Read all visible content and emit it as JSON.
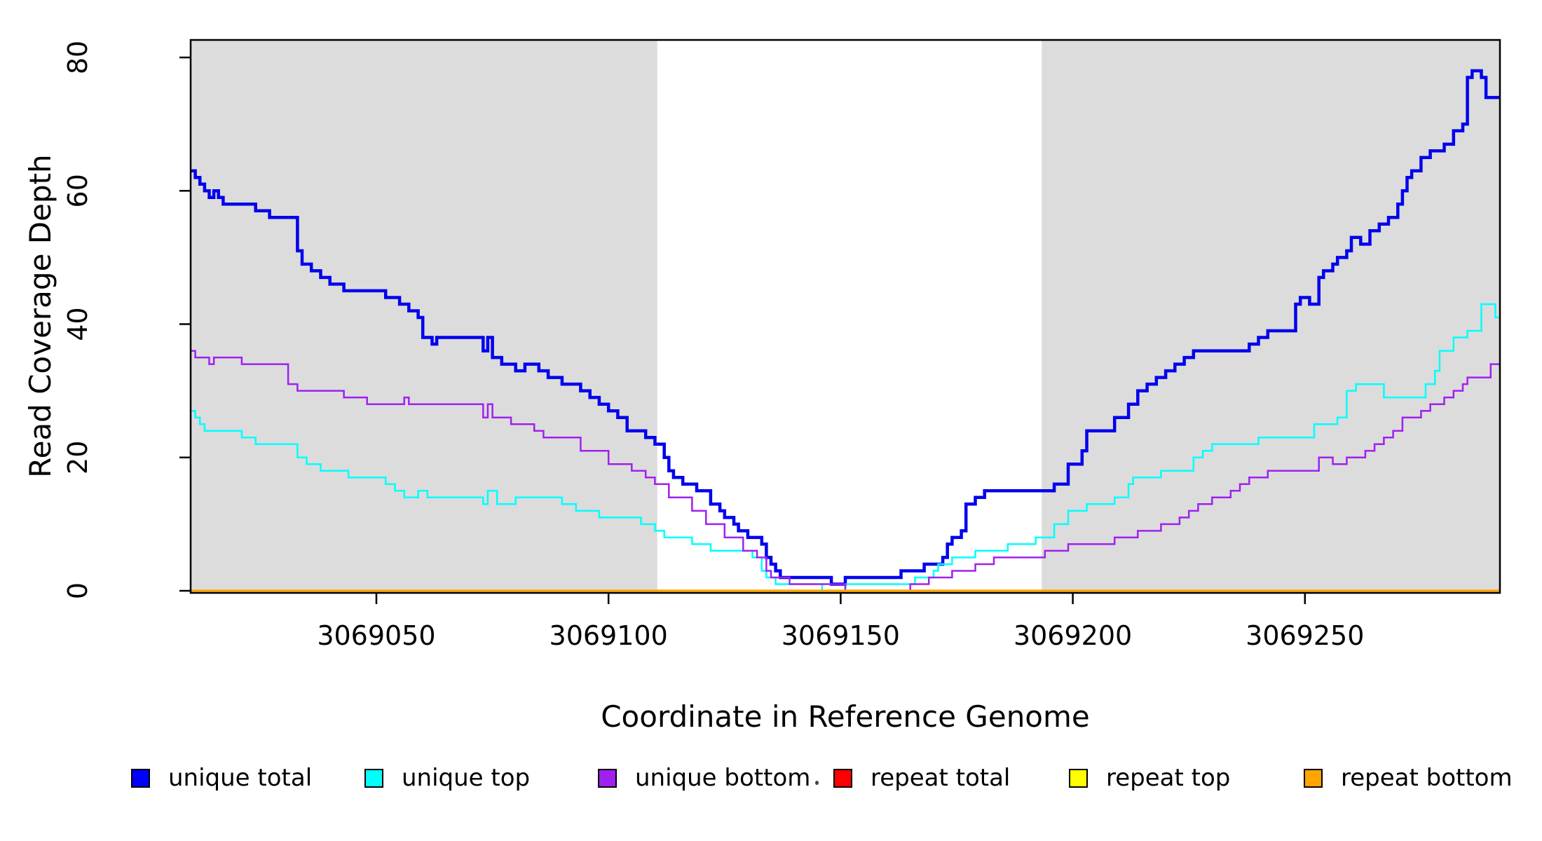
{
  "figure": {
    "kind": "R step coverage plot",
    "background": "#ffffff",
    "plot_background": "#ffffff",
    "box_color": "#000000"
  },
  "chart_data": {
    "type": "line",
    "subtype": "step",
    "title": "",
    "xlabel": "Coordinate in Reference Genome",
    "ylabel": "Read Coverage Depth",
    "xlim": [
      3069010,
      3069292
    ],
    "ylim": [
      0,
      80
    ],
    "x_ticks": [
      3069050,
      3069100,
      3069150,
      3069200,
      3069250
    ],
    "x_tick_labels": [
      "3069050",
      "3069100",
      "3069150",
      "3069200",
      "3069250"
    ],
    "y_ticks": [
      0,
      20,
      40,
      60,
      80
    ],
    "y_tick_labels": [
      "0",
      "20",
      "40",
      "60",
      "80"
    ],
    "y_tick_label_rotation": -90,
    "grid": false,
    "legend_position": "bottom",
    "shaded_regions": [
      {
        "x0": 3069010,
        "x1": 3069110.5,
        "color": "#DCDCDC",
        "name": "left-unique-shade"
      },
      {
        "x0": 3069193.3,
        "x1": 3069292,
        "color": "#DCDCDC",
        "name": "right-unique-shade"
      }
    ],
    "series": [
      {
        "name": "unique total",
        "color": "#0000EE",
        "width": 4.5,
        "steps": [
          [
            3069010,
            63
          ],
          [
            3069011,
            62
          ],
          [
            3069012,
            61
          ],
          [
            3069013,
            60
          ],
          [
            3069014,
            59
          ],
          [
            3069015,
            60
          ],
          [
            3069016,
            59
          ],
          [
            3069017,
            58
          ],
          [
            3069024,
            57
          ],
          [
            3069027,
            56
          ],
          [
            3069033,
            51
          ],
          [
            3069034,
            49
          ],
          [
            3069036,
            48
          ],
          [
            3069038,
            47
          ],
          [
            3069040,
            46
          ],
          [
            3069043,
            45
          ],
          [
            3069052,
            44
          ],
          [
            3069055,
            43
          ],
          [
            3069057,
            42
          ],
          [
            3069059,
            41
          ],
          [
            3069060,
            38
          ],
          [
            3069062,
            37
          ],
          [
            3069063,
            38
          ],
          [
            3069073,
            36
          ],
          [
            3069074,
            38
          ],
          [
            3069075,
            35
          ],
          [
            3069077,
            34
          ],
          [
            3069080,
            33
          ],
          [
            3069082,
            34
          ],
          [
            3069085,
            33
          ],
          [
            3069087,
            32
          ],
          [
            3069090,
            31
          ],
          [
            3069094,
            30
          ],
          [
            3069096,
            29
          ],
          [
            3069098,
            28
          ],
          [
            3069100,
            27
          ],
          [
            3069102,
            26
          ],
          [
            3069104,
            24
          ],
          [
            3069108,
            23
          ],
          [
            3069110,
            22
          ],
          [
            3069112,
            20
          ],
          [
            3069113,
            18
          ],
          [
            3069114,
            17
          ],
          [
            3069116,
            16
          ],
          [
            3069119,
            15
          ],
          [
            3069122,
            13
          ],
          [
            3069124,
            12
          ],
          [
            3069125,
            11
          ],
          [
            3069127,
            10
          ],
          [
            3069128,
            9
          ],
          [
            3069130,
            8
          ],
          [
            3069133,
            7
          ],
          [
            3069134,
            5
          ],
          [
            3069135,
            4
          ],
          [
            3069136,
            3
          ],
          [
            3069137,
            2
          ],
          [
            3069148,
            1
          ],
          [
            3069151,
            2
          ],
          [
            3069163,
            3
          ],
          [
            3069168,
            4
          ],
          [
            3069172,
            5
          ],
          [
            3069173,
            7
          ],
          [
            3069174,
            8
          ],
          [
            3069176,
            9
          ],
          [
            3069177,
            13
          ],
          [
            3069179,
            14
          ],
          [
            3069181,
            15
          ],
          [
            3069196,
            16
          ],
          [
            3069199,
            19
          ],
          [
            3069202,
            21
          ],
          [
            3069203,
            24
          ],
          [
            3069209,
            26
          ],
          [
            3069212,
            28
          ],
          [
            3069214,
            30
          ],
          [
            3069216,
            31
          ],
          [
            3069218,
            32
          ],
          [
            3069220,
            33
          ],
          [
            3069222,
            34
          ],
          [
            3069224,
            35
          ],
          [
            3069226,
            36
          ],
          [
            3069238,
            37
          ],
          [
            3069240,
            38
          ],
          [
            3069242,
            39
          ],
          [
            3069248,
            43
          ],
          [
            3069249,
            44
          ],
          [
            3069251,
            43
          ],
          [
            3069253,
            47
          ],
          [
            3069254,
            48
          ],
          [
            3069256,
            49
          ],
          [
            3069257,
            50
          ],
          [
            3069259,
            51
          ],
          [
            3069260,
            53
          ],
          [
            3069262,
            52
          ],
          [
            3069264,
            54
          ],
          [
            3069266,
            55
          ],
          [
            3069268,
            56
          ],
          [
            3069270,
            58
          ],
          [
            3069271,
            60
          ],
          [
            3069272,
            62
          ],
          [
            3069273,
            63
          ],
          [
            3069275,
            65
          ],
          [
            3069277,
            66
          ],
          [
            3069280,
            67
          ],
          [
            3069282,
            69
          ],
          [
            3069284,
            70
          ],
          [
            3069285,
            77
          ],
          [
            3069286,
            78
          ],
          [
            3069288,
            77
          ],
          [
            3069289,
            74
          ]
        ]
      },
      {
        "name": "unique top",
        "color": "#00FFFF",
        "width": 2.5,
        "steps": [
          [
            3069010,
            27
          ],
          [
            3069011,
            26
          ],
          [
            3069012,
            25
          ],
          [
            3069013,
            24
          ],
          [
            3069021,
            23
          ],
          [
            3069024,
            22
          ],
          [
            3069033,
            20
          ],
          [
            3069035,
            19
          ],
          [
            3069038,
            18
          ],
          [
            3069044,
            17
          ],
          [
            3069052,
            16
          ],
          [
            3069054,
            15
          ],
          [
            3069056,
            14
          ],
          [
            3069059,
            15
          ],
          [
            3069061,
            14
          ],
          [
            3069073,
            13
          ],
          [
            3069074,
            15
          ],
          [
            3069076,
            13
          ],
          [
            3069080,
            14
          ],
          [
            3069090,
            13
          ],
          [
            3069093,
            12
          ],
          [
            3069098,
            11
          ],
          [
            3069107,
            10
          ],
          [
            3069110,
            9
          ],
          [
            3069112,
            8
          ],
          [
            3069118,
            7
          ],
          [
            3069122,
            6
          ],
          [
            3069131,
            5
          ],
          [
            3069133,
            3
          ],
          [
            3069134,
            2
          ],
          [
            3069136,
            1
          ],
          [
            3069146,
            0
          ],
          [
            3069151,
            1
          ],
          [
            3069166,
            2
          ],
          [
            3069170,
            3
          ],
          [
            3069171,
            4
          ],
          [
            3069174,
            5
          ],
          [
            3069179,
            6
          ],
          [
            3069186,
            7
          ],
          [
            3069192,
            8
          ],
          [
            3069196,
            10
          ],
          [
            3069199,
            12
          ],
          [
            3069203,
            13
          ],
          [
            3069209,
            14
          ],
          [
            3069212,
            16
          ],
          [
            3069213,
            17
          ],
          [
            3069219,
            18
          ],
          [
            3069226,
            20
          ],
          [
            3069228,
            21
          ],
          [
            3069230,
            22
          ],
          [
            3069240,
            23
          ],
          [
            3069252,
            25
          ],
          [
            3069257,
            26
          ],
          [
            3069259,
            30
          ],
          [
            3069261,
            31
          ],
          [
            3069267,
            29
          ],
          [
            3069276,
            31
          ],
          [
            3069278,
            33
          ],
          [
            3069279,
            36
          ],
          [
            3069282,
            38
          ],
          [
            3069285,
            39
          ],
          [
            3069288,
            43
          ],
          [
            3069291,
            41
          ]
        ]
      },
      {
        "name": "unique bottom",
        "color": "#A020F0",
        "width": 2.5,
        "steps": [
          [
            3069010,
            36
          ],
          [
            3069011,
            35
          ],
          [
            3069014,
            34
          ],
          [
            3069015,
            35
          ],
          [
            3069021,
            34
          ],
          [
            3069031,
            31
          ],
          [
            3069033,
            30
          ],
          [
            3069043,
            29
          ],
          [
            3069048,
            28
          ],
          [
            3069056,
            29
          ],
          [
            3069057,
            28
          ],
          [
            3069073,
            26
          ],
          [
            3069074,
            28
          ],
          [
            3069075,
            26
          ],
          [
            3069079,
            25
          ],
          [
            3069084,
            24
          ],
          [
            3069086,
            23
          ],
          [
            3069094,
            21
          ],
          [
            3069100,
            19
          ],
          [
            3069105,
            18
          ],
          [
            3069108,
            17
          ],
          [
            3069110,
            16
          ],
          [
            3069113,
            14
          ],
          [
            3069118,
            12
          ],
          [
            3069121,
            10
          ],
          [
            3069125,
            8
          ],
          [
            3069129,
            6
          ],
          [
            3069132,
            5
          ],
          [
            3069134,
            3
          ],
          [
            3069135,
            2
          ],
          [
            3069139,
            1
          ],
          [
            3069151,
            0
          ],
          [
            3069165,
            1
          ],
          [
            3069169,
            2
          ],
          [
            3069174,
            3
          ],
          [
            3069179,
            4
          ],
          [
            3069183,
            5
          ],
          [
            3069194,
            6
          ],
          [
            3069199,
            7
          ],
          [
            3069209,
            8
          ],
          [
            3069214,
            9
          ],
          [
            3069219,
            10
          ],
          [
            3069223,
            11
          ],
          [
            3069225,
            12
          ],
          [
            3069227,
            13
          ],
          [
            3069230,
            14
          ],
          [
            3069234,
            15
          ],
          [
            3069236,
            16
          ],
          [
            3069238,
            17
          ],
          [
            3069242,
            18
          ],
          [
            3069253,
            20
          ],
          [
            3069256,
            19
          ],
          [
            3069259,
            20
          ],
          [
            3069263,
            21
          ],
          [
            3069265,
            22
          ],
          [
            3069267,
            23
          ],
          [
            3069269,
            24
          ],
          [
            3069271,
            26
          ],
          [
            3069275,
            27
          ],
          [
            3069277,
            28
          ],
          [
            3069280,
            29
          ],
          [
            3069282,
            30
          ],
          [
            3069284,
            31
          ],
          [
            3069285,
            32
          ],
          [
            3069290,
            34
          ],
          [
            3069292,
            33
          ]
        ]
      },
      {
        "name": "repeat total",
        "color": "#FF0000",
        "width": 2.5,
        "steps": [
          [
            3069010,
            0
          ]
        ]
      },
      {
        "name": "repeat top",
        "color": "#FFFF00",
        "width": 2.5,
        "steps": [
          [
            3069010,
            0
          ]
        ]
      },
      {
        "name": "repeat bottom",
        "color": "#FFA500",
        "width": 3.5,
        "steps": [
          [
            3069010,
            0
          ]
        ]
      }
    ]
  },
  "legend": {
    "items": [
      {
        "label": "unique total",
        "color": "#0000FF"
      },
      {
        "label": "unique top",
        "color": "#00FFFF"
      },
      {
        "label": "unique bottom",
        "color": "#A020F0"
      },
      {
        "label": "repeat total",
        "color": "#FF0000"
      },
      {
        "label": "repeat top",
        "color": "#FFFF00"
      },
      {
        "label": "repeat bottom",
        "color": "#FFA500"
      }
    ]
  }
}
